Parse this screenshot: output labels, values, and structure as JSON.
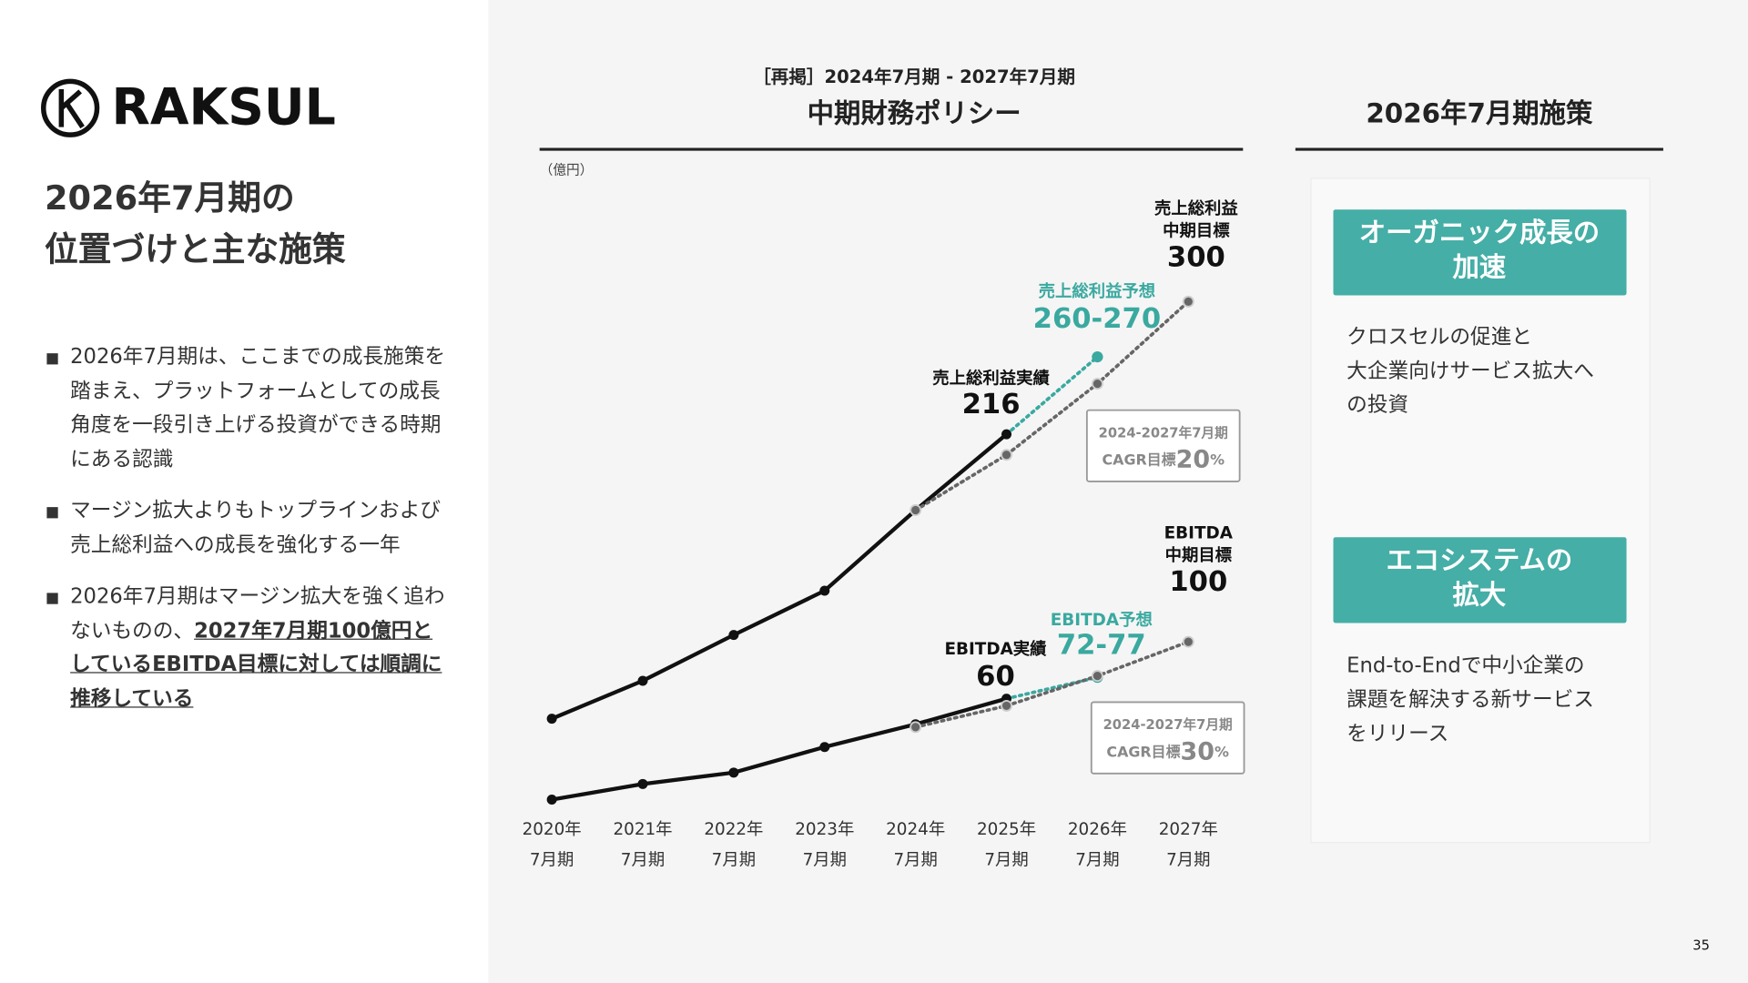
{
  "logo": "RAKSUL",
  "heading": [
    "2026年7月期の",
    "位置づけと主な施策"
  ],
  "bullets": [
    {
      "text": "2026年7月期は、ここまでの成長施策を踏まえ、プラットフォームとしての成長角度を一段引き上げる投資ができる時期にある認識"
    },
    {
      "text": "マージン拡大よりもトップラインおよび売上総利益への成長を強化する一年"
    },
    {
      "text": "2026年7月期はマージン拡大を強く追わないものの、",
      "emphasis": "2027年7月期100億円としているEBITDA目標に対しては順調に推移している"
    }
  ],
  "chart_data": {
    "type": "line",
    "subtitle": "［再掲］2024年7月期 - 2027年7月期",
    "title": "中期財務ポリシー",
    "unit_label": "（億円）",
    "categories": [
      [
        "2020年",
        "7月期"
      ],
      [
        "2021年",
        "7月期"
      ],
      [
        "2022年",
        "7月期"
      ],
      [
        "2023年",
        "7月期"
      ],
      [
        "2024年",
        "7月期"
      ],
      [
        "2025年",
        "7月期"
      ],
      [
        "2026年",
        "7月期"
      ],
      [
        "2027年",
        "7月期"
      ]
    ],
    "ylim": [
      -17,
      378
    ],
    "y2lim": [
      -13,
      426
    ],
    "series": [
      {
        "name": "売上総利益実績",
        "color": "#111111",
        "style": "solid",
        "values": [
          36,
          60,
          89,
          117,
          168,
          216,
          null,
          null
        ]
      },
      {
        "name": "売上総利益予想",
        "color": "#3aa9a0",
        "style": "dotted",
        "values": [
          null,
          null,
          null,
          null,
          null,
          216,
          265,
          null
        ],
        "value_labels": [
          null,
          null,
          null,
          null,
          null,
          null,
          "260-270",
          null
        ]
      },
      {
        "name_lines": [
          "売上総利益",
          "中期目標"
        ],
        "color": "#666666",
        "style": "dotted",
        "values": [
          null,
          null,
          null,
          null,
          168,
          203,
          248,
          300
        ]
      },
      {
        "name": "EBITDA実績",
        "color": "#111111",
        "style": "solid",
        "axis": "y2",
        "values": [
          -11,
          0,
          8,
          26,
          42,
          60,
          null,
          null
        ]
      },
      {
        "name": "EBITDA予想",
        "color": "#3aa9a0",
        "style": "dotted",
        "axis": "y2",
        "values": [
          null,
          null,
          null,
          null,
          null,
          60,
          75,
          null
        ],
        "value_labels": [
          null,
          null,
          null,
          null,
          null,
          null,
          "72-77",
          null
        ]
      },
      {
        "name_lines": [
          "EBITDA",
          "中期目標"
        ],
        "color": "#666666",
        "style": "dotted",
        "axis": "y2",
        "values": [
          null,
          null,
          null,
          null,
          40,
          55,
          76,
          100
        ]
      }
    ],
    "cagr": [
      {
        "period": "2024-2027年7月期",
        "label": "CAGR目標",
        "value": 20,
        "unit": "%"
      },
      {
        "period": "2024-2027年7月期",
        "label": "CAGR目標",
        "value": 30,
        "unit": "%"
      }
    ]
  },
  "initiatives": {
    "title": "2026年7月期施策",
    "cards": [
      {
        "title": [
          "オーガニック成長の",
          "加速"
        ],
        "description": [
          "クロスセルの促進と",
          "大企業向けサービス拡大へ",
          "の投資"
        ]
      },
      {
        "title": [
          "エコシステムの",
          "拡大"
        ],
        "description": [
          "End-to-Endで中小企業の",
          "課題を解決する新サービス",
          "をリリース"
        ]
      }
    ]
  },
  "page_number": "35"
}
